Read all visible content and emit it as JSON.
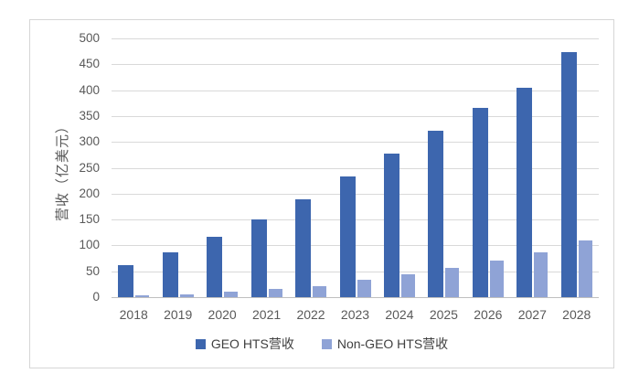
{
  "chart_data": {
    "type": "bar",
    "title": "",
    "xlabel": "",
    "ylabel": "营收（亿美元）",
    "categories": [
      "2018",
      "2019",
      "2020",
      "2021",
      "2022",
      "2023",
      "2024",
      "2025",
      "2026",
      "2027",
      "2028"
    ],
    "series": [
      {
        "name": "GEO HTS营收",
        "color": "#3d66ae",
        "values": [
          62,
          86,
          116,
          151,
          189,
          233,
          278,
          322,
          366,
          405,
          474
        ]
      },
      {
        "name": "Non-GEO HTS营收",
        "color": "#8fa3d6",
        "values": [
          3,
          5,
          10,
          16,
          21,
          34,
          45,
          57,
          70,
          86,
          110
        ]
      }
    ],
    "ylim": [
      0,
      500
    ],
    "ytick_step": 50,
    "grid": "horizontal",
    "legend_position": "bottom"
  },
  "colors": {
    "background": "#ffffff",
    "frame_border": "#d6d6d6",
    "gridline": "#d9d9d9",
    "axis_line": "#bfbfbf",
    "tick_text": "#595959",
    "legend_text": "#404040"
  }
}
